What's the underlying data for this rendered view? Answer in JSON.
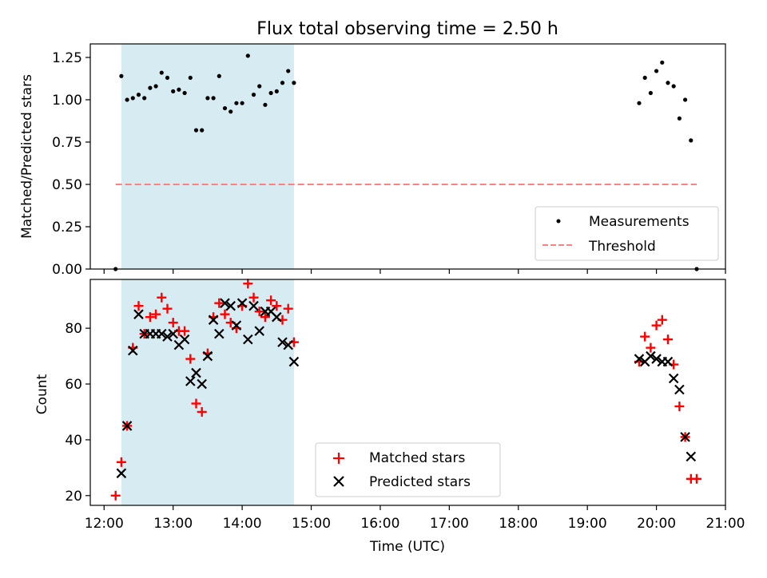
{
  "title": "Flux total observing time = 2.50 h",
  "colors": {
    "shade": "#add8e6",
    "measurement": "#000000",
    "threshold": "#ff7f7f",
    "matched": "#ff0000",
    "predicted": "#000000"
  },
  "chart_data": [
    {
      "type": "scatter",
      "ylabel": "Matched/Predicted stars",
      "xlim": [
        "11:48",
        "21:00"
      ],
      "ylim": [
        0.0,
        1.33
      ],
      "y_ticks": [
        "0.00",
        "0.25",
        "0.50",
        "0.75",
        "1.00",
        "1.25"
      ],
      "shaded_span": [
        "12:15",
        "14:45"
      ],
      "legend_position": "lower right",
      "legend": [
        "Measurements",
        "Threshold"
      ],
      "series": [
        {
          "name": "Measurements",
          "marker": "dot",
          "points": [
            [
              "12:10",
              0.0
            ],
            [
              "12:15",
              1.14
            ],
            [
              "12:20",
              1.0
            ],
            [
              "12:25",
              1.01
            ],
            [
              "12:30",
              1.03
            ],
            [
              "12:35",
              1.01
            ],
            [
              "12:40",
              1.07
            ],
            [
              "12:45",
              1.08
            ],
            [
              "12:50",
              1.16
            ],
            [
              "12:55",
              1.13
            ],
            [
              "13:00",
              1.05
            ],
            [
              "13:05",
              1.06
            ],
            [
              "13:10",
              1.04
            ],
            [
              "13:15",
              1.13
            ],
            [
              "13:20",
              0.82
            ],
            [
              "13:25",
              0.82
            ],
            [
              "13:30",
              1.01
            ],
            [
              "13:35",
              1.01
            ],
            [
              "13:40",
              1.14
            ],
            [
              "13:45",
              0.95
            ],
            [
              "13:50",
              0.93
            ],
            [
              "13:55",
              0.98
            ],
            [
              "14:00",
              0.98
            ],
            [
              "14:05",
              1.26
            ],
            [
              "14:10",
              1.03
            ],
            [
              "14:15",
              1.08
            ],
            [
              "14:20",
              0.97
            ],
            [
              "14:25",
              1.04
            ],
            [
              "14:30",
              1.05
            ],
            [
              "14:35",
              1.1
            ],
            [
              "14:40",
              1.17
            ],
            [
              "14:45",
              1.1
            ],
            [
              "19:45",
              0.98
            ],
            [
              "19:50",
              1.13
            ],
            [
              "19:55",
              1.04
            ],
            [
              "20:00",
              1.17
            ],
            [
              "20:05",
              1.22
            ],
            [
              "20:10",
              1.1
            ],
            [
              "20:15",
              1.08
            ],
            [
              "20:20",
              0.89
            ],
            [
              "20:25",
              1.0
            ],
            [
              "20:30",
              0.76
            ],
            [
              "20:35",
              0.0
            ]
          ]
        },
        {
          "name": "Threshold",
          "style": "dashed",
          "points": [
            [
              "12:10",
              0.5
            ],
            [
              "20:35",
              0.5
            ]
          ]
        }
      ]
    },
    {
      "type": "scatter",
      "xlabel": "Time (UTC)",
      "ylabel": "Count",
      "xlim": [
        "11:48",
        "21:00"
      ],
      "ylim": [
        16.5,
        97.5
      ],
      "y_ticks": [
        "20",
        "40",
        "60",
        "80"
      ],
      "x_ticks": [
        "12:00",
        "13:00",
        "14:00",
        "15:00",
        "16:00",
        "17:00",
        "18:00",
        "19:00",
        "20:00",
        "21:00"
      ],
      "shaded_span": [
        "12:15",
        "14:45"
      ],
      "legend_position": "lower center",
      "legend": [
        "Matched stars",
        "Predicted stars"
      ],
      "series": [
        {
          "name": "Matched stars",
          "marker": "plus",
          "points": [
            [
              "12:10",
              20
            ],
            [
              "12:15",
              32
            ],
            [
              "12:20",
              45
            ],
            [
              "12:25",
              73
            ],
            [
              "12:30",
              88
            ],
            [
              "12:35",
              78
            ],
            [
              "12:40",
              84
            ],
            [
              "12:45",
              85
            ],
            [
              "12:50",
              91
            ],
            [
              "12:55",
              87
            ],
            [
              "13:00",
              82
            ],
            [
              "13:05",
              79
            ],
            [
              "13:10",
              79
            ],
            [
              "13:15",
              69
            ],
            [
              "13:20",
              53
            ],
            [
              "13:25",
              50
            ],
            [
              "13:30",
              71
            ],
            [
              "13:35",
              84
            ],
            [
              "13:40",
              89
            ],
            [
              "13:45",
              85
            ],
            [
              "13:50",
              82
            ],
            [
              "13:55",
              80
            ],
            [
              "14:00",
              88
            ],
            [
              "14:05",
              96
            ],
            [
              "14:10",
              91
            ],
            [
              "14:15",
              86
            ],
            [
              "14:20",
              84
            ],
            [
              "14:25",
              90
            ],
            [
              "14:30",
              88
            ],
            [
              "14:35",
              83
            ],
            [
              "14:40",
              87
            ],
            [
              "14:45",
              75
            ],
            [
              "19:45",
              68
            ],
            [
              "19:50",
              77
            ],
            [
              "19:55",
              73
            ],
            [
              "20:00",
              81
            ],
            [
              "20:05",
              83
            ],
            [
              "20:10",
              76
            ],
            [
              "20:15",
              67
            ],
            [
              "20:20",
              52
            ],
            [
              "20:25",
              41
            ],
            [
              "20:30",
              26
            ],
            [
              "20:35",
              26
            ]
          ]
        },
        {
          "name": "Predicted stars",
          "marker": "x",
          "points": [
            [
              "12:15",
              28
            ],
            [
              "12:20",
              45
            ],
            [
              "12:25",
              72
            ],
            [
              "12:30",
              85
            ],
            [
              "12:35",
              78
            ],
            [
              "12:40",
              78
            ],
            [
              "12:45",
              78
            ],
            [
              "12:50",
              78
            ],
            [
              "12:55",
              77
            ],
            [
              "13:00",
              78
            ],
            [
              "13:05",
              74
            ],
            [
              "13:10",
              76
            ],
            [
              "13:15",
              61
            ],
            [
              "13:20",
              64
            ],
            [
              "13:25",
              60
            ],
            [
              "13:30",
              70
            ],
            [
              "13:35",
              83
            ],
            [
              "13:40",
              78
            ],
            [
              "13:45",
              89
            ],
            [
              "13:50",
              88
            ],
            [
              "13:55",
              81
            ],
            [
              "14:00",
              89
            ],
            [
              "14:05",
              76
            ],
            [
              "14:10",
              88
            ],
            [
              "14:15",
              79
            ],
            [
              "14:20",
              86
            ],
            [
              "14:25",
              86
            ],
            [
              "14:30",
              84
            ],
            [
              "14:35",
              75
            ],
            [
              "14:40",
              74
            ],
            [
              "14:45",
              68
            ],
            [
              "19:45",
              69
            ],
            [
              "19:50",
              68
            ],
            [
              "19:55",
              70
            ],
            [
              "20:00",
              69
            ],
            [
              "20:05",
              68
            ],
            [
              "20:10",
              68
            ],
            [
              "20:15",
              62
            ],
            [
              "20:20",
              58
            ],
            [
              "20:25",
              41
            ],
            [
              "20:30",
              34
            ]
          ]
        }
      ]
    }
  ]
}
